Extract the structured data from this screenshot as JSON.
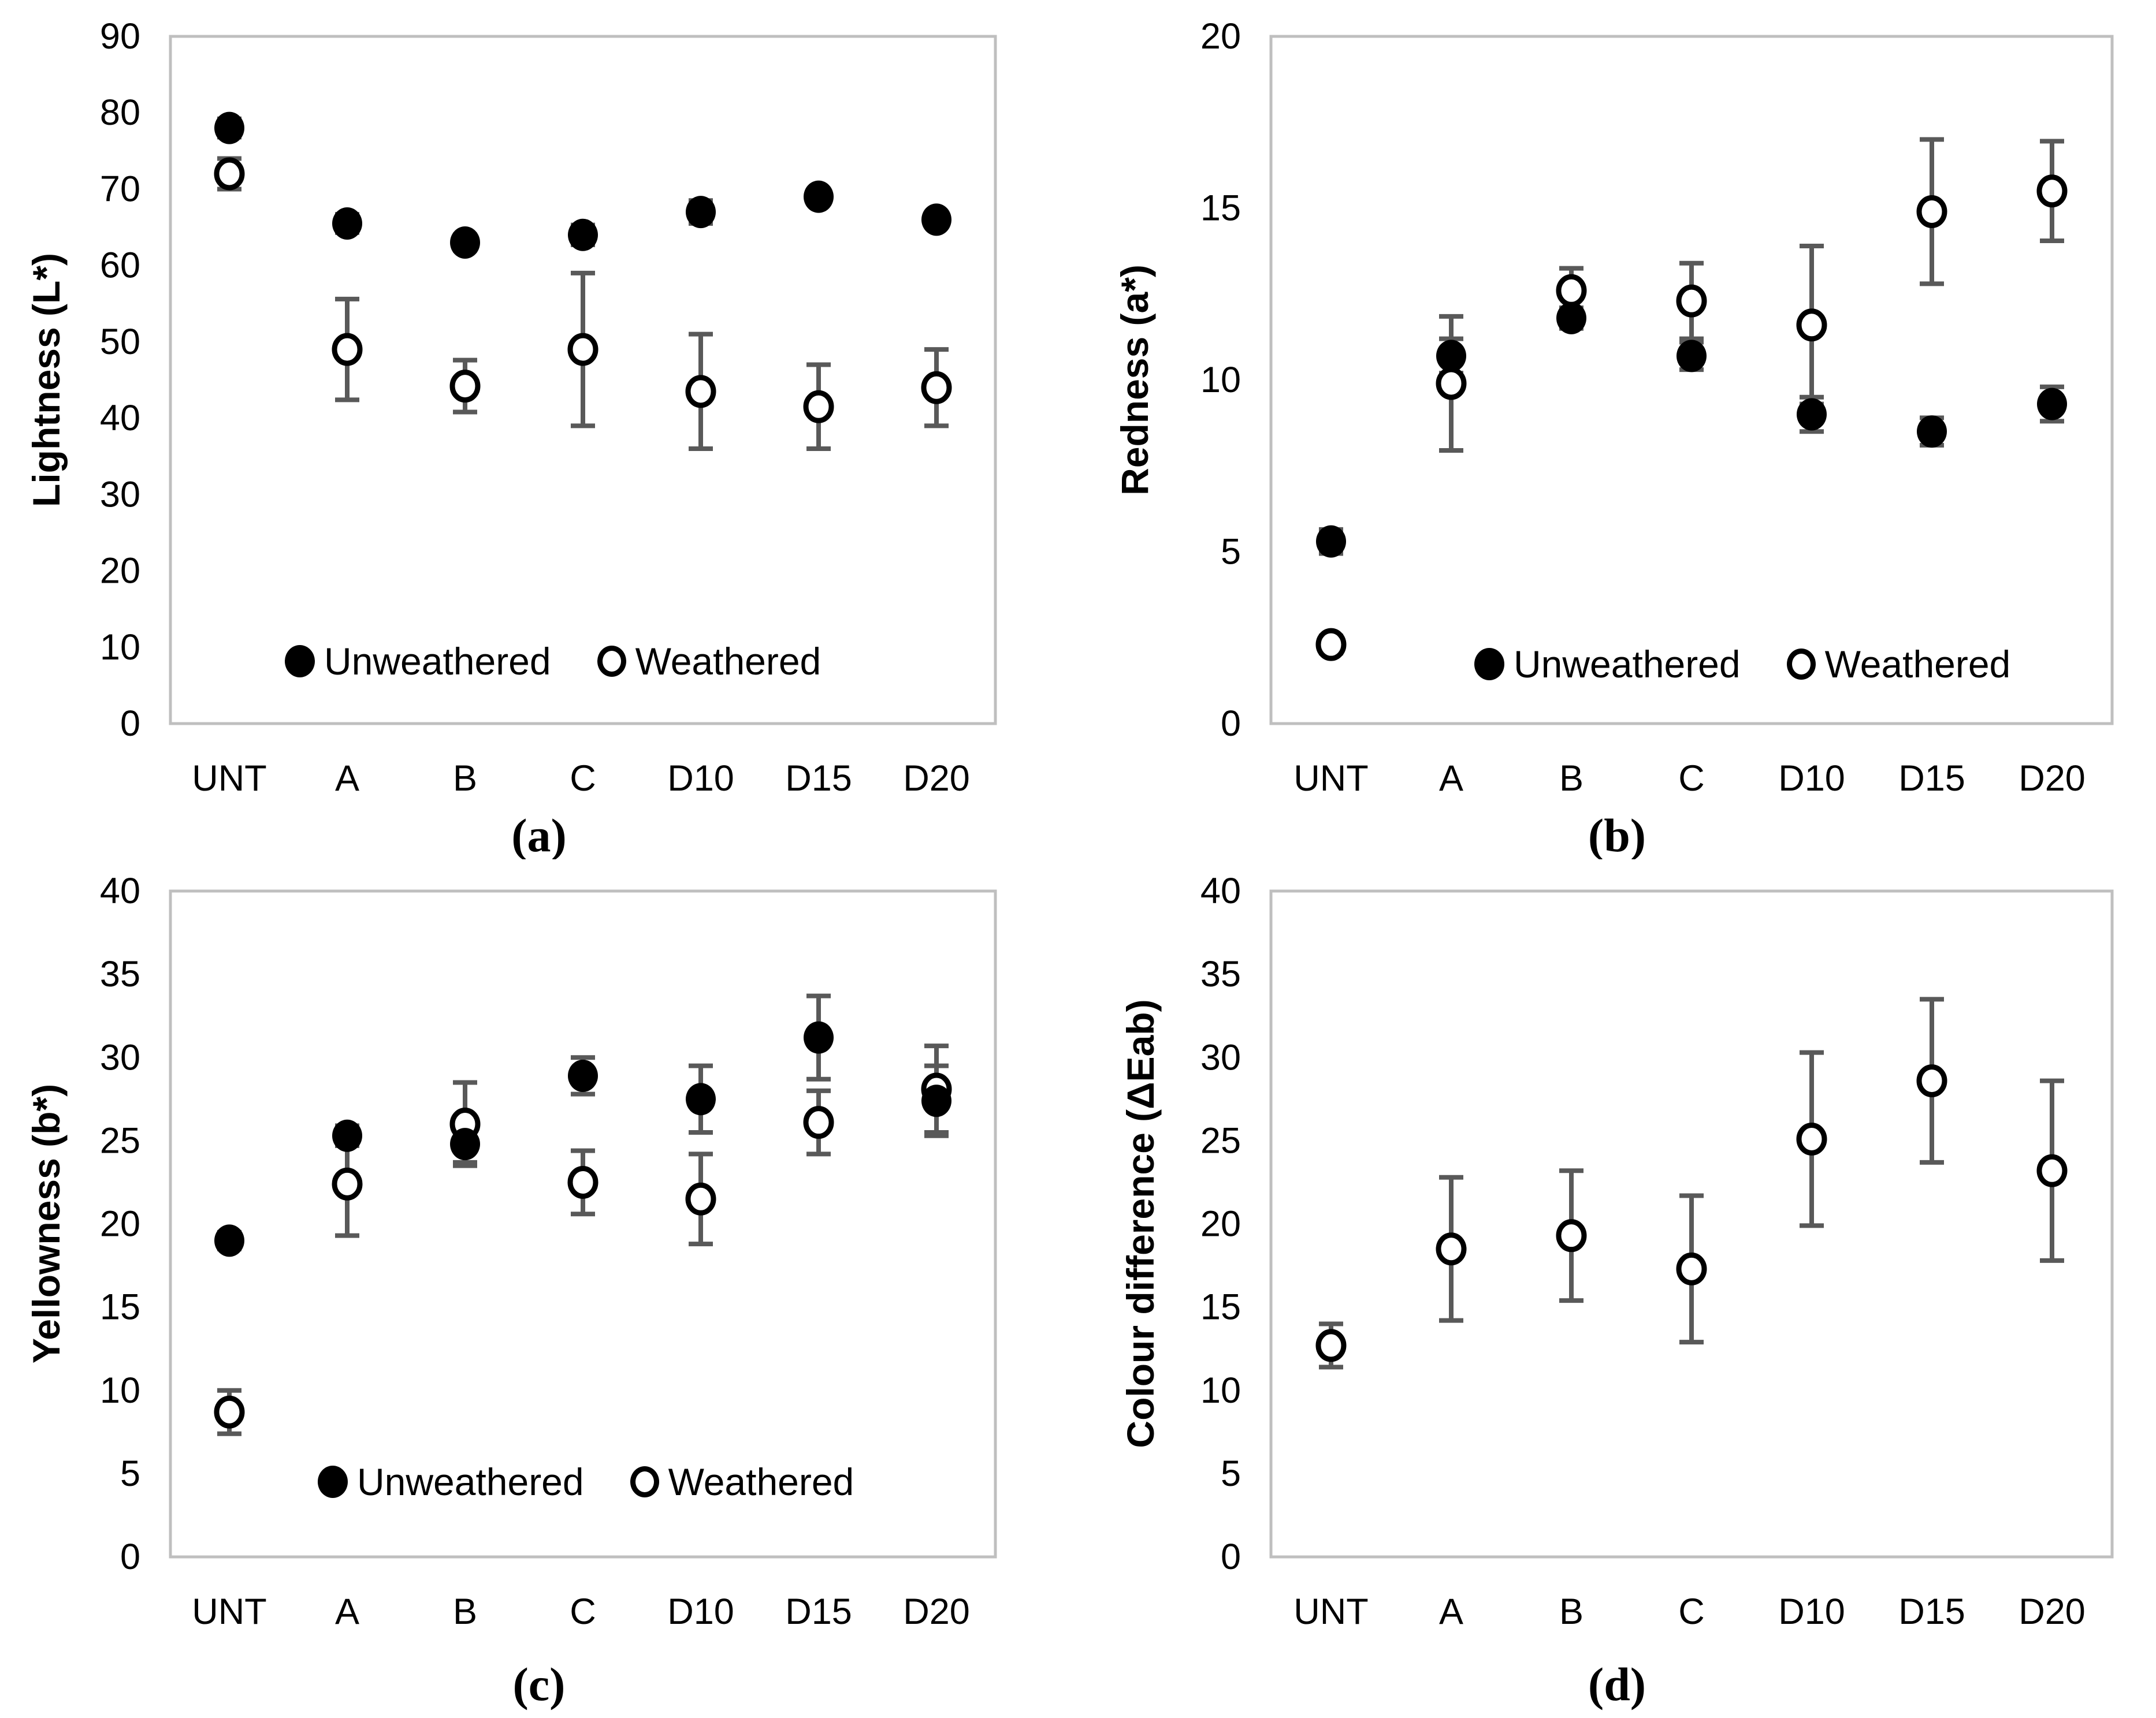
{
  "colors": {
    "marker": "#000000",
    "marker_open_fill": "#ffffff",
    "error_bar": "#595959",
    "plot_frame": "#bfbfbf",
    "text": "#000000",
    "background": "#ffffff"
  },
  "legend": {
    "unweathered": "Unweathered",
    "weathered": "Weathered"
  },
  "categories": [
    "UNT",
    "A",
    "B",
    "C",
    "D10",
    "D15",
    "D20"
  ],
  "chart_data": [
    {
      "id": "a",
      "type": "scatter",
      "caption": "(a)",
      "ylabel": "Lightness (L*)",
      "ylim": [
        0,
        90
      ],
      "yticks": [
        0,
        10,
        20,
        30,
        40,
        50,
        60,
        70,
        80,
        90
      ],
      "grid": false,
      "legend_position": "inside-bottom",
      "categories": [
        "UNT",
        "A",
        "B",
        "C",
        "D10",
        "D15",
        "D20"
      ],
      "series": [
        {
          "name": "Unweathered",
          "marker": "filled-circle",
          "values": [
            78,
            65.5,
            63,
            64,
            67,
            69,
            66
          ],
          "errors": [
            1.2,
            1.2,
            1.0,
            1.3,
            1.5,
            0.8,
            0.8
          ]
        },
        {
          "name": "Weathered",
          "marker": "open-circle",
          "values": [
            72,
            49,
            44.2,
            49,
            43.5,
            41.5,
            44
          ],
          "errors": [
            2.0,
            6.6,
            3.4,
            10.0,
            7.5,
            5.5,
            5.0
          ]
        }
      ]
    },
    {
      "id": "b",
      "type": "scatter",
      "caption": "(b)",
      "ylabel": "Redness (a*)",
      "ylim": [
        0,
        20
      ],
      "yticks": [
        0,
        5,
        10,
        15,
        20
      ],
      "grid": false,
      "legend_position": "inside-bottom",
      "categories": [
        "UNT",
        "A",
        "B",
        "C",
        "D10",
        "D15",
        "D20"
      ],
      "series": [
        {
          "name": "Unweathered",
          "marker": "filled-circle",
          "values": [
            5.3,
            10.7,
            11.8,
            10.7,
            9.0,
            8.5,
            9.3
          ],
          "errors": [
            0.35,
            0.5,
            0.3,
            0.4,
            0.5,
            0.4,
            0.5
          ]
        },
        {
          "name": "Weathered",
          "marker": "open-circle",
          "values": [
            2.3,
            9.9,
            12.6,
            12.3,
            11.6,
            14.9,
            15.5
          ],
          "errors": [
            0.25,
            1.95,
            0.65,
            1.1,
            2.3,
            2.1,
            1.45
          ]
        }
      ]
    },
    {
      "id": "c",
      "type": "scatter",
      "caption": "(c)",
      "ylabel": "Yellowness (b*)",
      "ylim": [
        0,
        40
      ],
      "yticks": [
        0,
        5,
        10,
        15,
        20,
        25,
        30,
        35,
        40
      ],
      "grid": false,
      "legend_position": "inside-bottom",
      "categories": [
        "UNT",
        "A",
        "B",
        "C",
        "D10",
        "D15",
        "D20"
      ],
      "series": [
        {
          "name": "Unweathered",
          "marker": "filled-circle",
          "values": [
            19,
            25.3,
            24.8,
            28.9,
            27.5,
            31.2,
            27.4
          ],
          "errors": [
            0.5,
            0.6,
            1.1,
            1.1,
            2.0,
            2.5,
            2.1
          ]
        },
        {
          "name": "Weathered",
          "marker": "open-circle",
          "values": [
            8.7,
            22.4,
            26.0,
            22.5,
            21.5,
            26.1,
            28.1
          ],
          "errors": [
            1.3,
            3.1,
            2.5,
            1.9,
            2.7,
            1.9,
            2.6
          ]
        }
      ]
    },
    {
      "id": "d",
      "type": "scatter",
      "caption": "(d)",
      "ylabel": "Colour difference (ΔEab)",
      "ylim": [
        0,
        40
      ],
      "yticks": [
        0,
        5,
        10,
        15,
        20,
        25,
        30,
        35,
        40
      ],
      "grid": false,
      "legend_position": "none",
      "categories": [
        "UNT",
        "A",
        "B",
        "C",
        "D10",
        "D15",
        "D20"
      ],
      "series": [
        {
          "name": "Weathered",
          "marker": "open-circle",
          "values": [
            12.7,
            18.5,
            19.3,
            17.3,
            25.1,
            28.6,
            23.2
          ],
          "errors": [
            1.3,
            4.3,
            3.9,
            4.4,
            5.2,
            4.9,
            5.4
          ]
        }
      ]
    }
  ]
}
